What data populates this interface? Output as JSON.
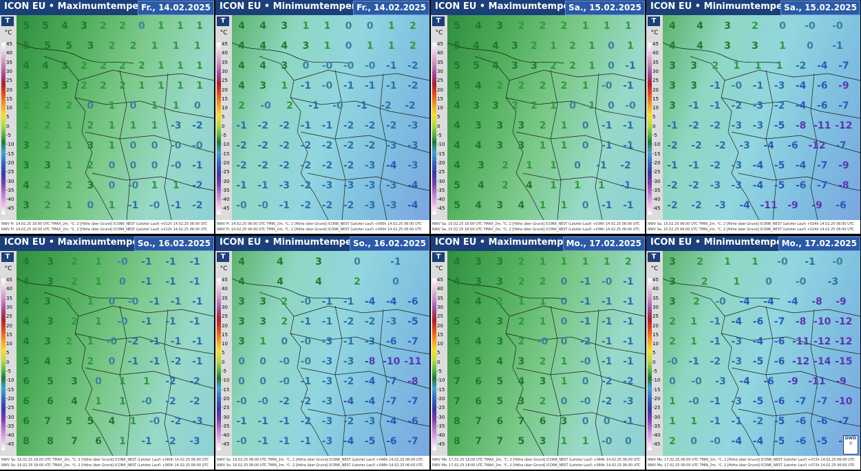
{
  "legend": {
    "t_label": "T",
    "unit": "°C",
    "ticks": [
      "45",
      "40",
      "35",
      "30",
      "25",
      "20",
      "15",
      "10",
      "5",
      "0",
      "-5",
      "-10",
      "-15",
      "-20",
      "-25",
      "-30",
      "-35",
      "-40",
      "-45"
    ]
  },
  "panels": [
    {
      "title": "ICON EU • Maximumtemperatur",
      "date": "Fr., 14.02.2025",
      "base": "#5bbf6b",
      "foot": [
        "NWV  Fr. 14.02.25 18:00 UTC    TMAX_2m, °C, 2 [Höhe über Grund]  ICON6_NEST (Letzter Lauf) +012h    14.02.25 06:00 UTC",
        "NWV  Fr. 14.02.25 18:00 UTC    TMAX_2m, °C, 2 [Höhe über Grund]  ICON6_NEST (Letzter Lauf) +012h    14.02.25 06:00 UTC"
      ],
      "rows": [
        [
          "5",
          "5",
          "4",
          "3",
          "2",
          "2",
          "0",
          "1",
          "1",
          "1"
        ],
        [
          "5",
          "5",
          "5",
          "3",
          "2",
          "2",
          "1",
          "1",
          "1"
        ],
        [
          "4",
          "4",
          "3",
          "2",
          "2",
          "2",
          "2",
          "1",
          "1",
          "1"
        ],
        [
          "3",
          "3",
          "3",
          "2",
          "2",
          "2",
          "1",
          "1",
          "1",
          "1"
        ],
        [
          "2",
          "2",
          "2",
          "0",
          "1",
          "0",
          "1",
          "1",
          "0"
        ],
        [
          "2",
          "2",
          "1",
          "2",
          "1",
          "1",
          "1",
          "-3",
          "-2"
        ],
        [
          "3",
          "2",
          "1",
          "3",
          "1",
          "0",
          "0",
          "-0",
          "-0"
        ],
        [
          "3",
          "3",
          "1",
          "2",
          "0",
          "0",
          "0",
          "-0",
          "-1"
        ],
        [
          "4",
          "2",
          "2",
          "3",
          "0",
          "-0",
          "1",
          "1",
          "-2"
        ],
        [
          "3",
          "2",
          "1",
          "0",
          "1",
          "-1",
          "-0",
          "-1",
          "-2"
        ]
      ]
    },
    {
      "title": "ICON EU • Minimumtemperatur",
      "date": "Fr., 14.02.2025",
      "base": "#8fd7d4",
      "foot": [
        "NWV  Fr. 14.02.25 06:00 UTC    TMIN_2m, °C, 2 [Höhe über Grund]  ICON6_NEST (Letzter Lauf) +000h    14.02.25 06:00 UTC",
        "NWV  Fr. 14.02.25 06:00 UTC    TMIN_2m, °C, 2 [Höhe über Grund]  ICON6_NEST (Letzter Lauf) +000h    14.02.25 06:00 UTC"
      ],
      "rows": [
        [
          "4",
          "4",
          "3",
          "1",
          "1",
          "0",
          "0",
          "1",
          "2"
        ],
        [
          "4",
          "4",
          "4",
          "3",
          "1",
          "0",
          "1",
          "1",
          "2"
        ],
        [
          "4",
          "4",
          "3",
          "0",
          "-0",
          "-0",
          "-0",
          "-1",
          "-2"
        ],
        [
          "4",
          "3",
          "1",
          "-1",
          "-0",
          "-1",
          "-1",
          "-1",
          "-2"
        ],
        [
          "2",
          "-0",
          "2",
          "-1",
          "-0",
          "-1",
          "-2",
          "-2"
        ],
        [
          "-1",
          "-2",
          "-2",
          "-1",
          "-1",
          "-2",
          "-2",
          "-2",
          "-3"
        ],
        [
          "-2",
          "-2",
          "-2",
          "-2",
          "-2",
          "-2",
          "-2",
          "-3",
          "-3"
        ],
        [
          "-2",
          "-2",
          "-2",
          "-2",
          "-2",
          "-2",
          "-3",
          "-4",
          "-3"
        ],
        [
          "-1",
          "-1",
          "-3",
          "-2",
          "-3",
          "-3",
          "-3",
          "-3",
          "-4"
        ],
        [
          "-0",
          "-0",
          "-1",
          "-2",
          "-2",
          "-2",
          "-3",
          "-3",
          "-4"
        ]
      ]
    },
    {
      "title": "ICON EU • Maximumtemperatur",
      "date": "Sa., 15.02.2025",
      "base": "#5bbf6b",
      "foot": [
        "NWV  Sa. 15.02.25 18:00 UTC    TMAX_2m, °C, 2 [Höhe über Grund]  ICON6_NEST (Letzter Lauf) +036h    14.02.25 06:00 UTC",
        "NWV  Sa. 15.02.25 18:00 UTC    TMAX_2m, °C, 2 [Höhe über Grund]  ICON6_NEST (Letzter Lauf) +036h    14.02.25 06:00 UTC"
      ],
      "rows": [
        [
          "5",
          "4",
          "3",
          "2",
          "2",
          "2",
          "1",
          "1",
          "1"
        ],
        [
          "5",
          "4",
          "4",
          "3",
          "2",
          "1",
          "2",
          "1",
          "0",
          "1"
        ],
        [
          "5",
          "5",
          "4",
          "3",
          "3",
          "2",
          "2",
          "1",
          "0",
          "-1"
        ],
        [
          "5",
          "4",
          "2",
          "2",
          "2",
          "2",
          "1",
          "-0",
          "-1"
        ],
        [
          "4",
          "3",
          "3",
          "2",
          "2",
          "1",
          "0",
          "1",
          "0",
          "-0"
        ],
        [
          "4",
          "3",
          "3",
          "3",
          "2",
          "1",
          "0",
          "-1",
          "-1"
        ],
        [
          "4",
          "4",
          "3",
          "3",
          "1",
          "1",
          "0",
          "-1",
          "-1"
        ],
        [
          "4",
          "3",
          "2",
          "1",
          "1",
          "0",
          "-1",
          "-2"
        ],
        [
          "5",
          "4",
          "2",
          "4",
          "1",
          "1",
          "1",
          "-1"
        ],
        [
          "5",
          "4",
          "3",
          "4",
          "1",
          "1",
          "0",
          "-1",
          "-1"
        ]
      ]
    },
    {
      "title": "ICON EU • Minimumtemperatur",
      "date": "Sa., 15.02.2025",
      "base": "#8fd7d4",
      "foot": [
        "NWV  Sa. 15.02.25 06:00 UTC    TMIN_2m, °C, 2 [Höhe über Grund]  ICON6_NEST (Letzter Lauf) +024h    14.02.25 06:00 UTC",
        "NWV  Sa. 15.02.25 06:00 UTC    TMIN_2m, °C, 2 [Höhe über Grund]  ICON6_NEST (Letzter Lauf) +024h    14.02.25 06:00 UTC"
      ],
      "rows": [
        [
          "4",
          "4",
          "3",
          "2",
          "0",
          "-0",
          "-0"
        ],
        [
          "4",
          "4",
          "3",
          "3",
          "1",
          "0",
          "-1"
        ],
        [
          "3",
          "3",
          "2",
          "1",
          "1",
          "1",
          "-2",
          "-4",
          "-7"
        ],
        [
          "3",
          "3",
          "-1",
          "-0",
          "-1",
          "-3",
          "-4",
          "-6",
          "-9"
        ],
        [
          "3",
          "-1",
          "-1",
          "-2",
          "-3",
          "-2",
          "-4",
          "-6",
          "-7"
        ],
        [
          "-1",
          "-2",
          "-2",
          "-3",
          "-3",
          "-5",
          "-8",
          "-11",
          "-12"
        ],
        [
          "-2",
          "-2",
          "-2",
          "-3",
          "-4",
          "-6",
          "-12",
          "-7"
        ],
        [
          "-1",
          "-1",
          "-2",
          "-3",
          "-4",
          "-5",
          "-4",
          "-7",
          "-9"
        ],
        [
          "-2",
          "-2",
          "-3",
          "-3",
          "-4",
          "-5",
          "-6",
          "-7",
          "-8"
        ],
        [
          "-2",
          "-2",
          "-3",
          "-4",
          "-11",
          "-9",
          "-9",
          "-6"
        ]
      ]
    },
    {
      "title": "ICON EU • Maximumtemperatur",
      "date": "So., 16.02.2025",
      "base": "#5bbf6b",
      "foot": [
        "NWV  So. 16.02.25 18:00 UTC    TMAX_2m, °C, 2 [Höhe über Grund]  ICON6_NEST (Letzter Lauf) +060h    14.02.25 06:00 UTC",
        "NWV  So. 16.02.25 18:00 UTC    TMAX_2m, °C, 2 [Höhe über Grund]  ICON6_NEST (Letzter Lauf) +060h    14.02.25 06:00 UTC"
      ],
      "rows": [
        [
          "4",
          "3",
          "2",
          "1",
          "-0",
          "-1",
          "-1",
          "-1"
        ],
        [
          "4",
          "3",
          "2",
          "1",
          "0",
          "-1",
          "-1",
          "-1"
        ],
        [
          "4",
          "3",
          "1",
          "1",
          "0",
          "-0",
          "-1",
          "-1",
          "-1"
        ],
        [
          "4",
          "3",
          "2",
          "1",
          "-0",
          "-1",
          "-1",
          "-1"
        ],
        [
          "4",
          "3",
          "2",
          "1",
          "-0",
          "-2",
          "-1",
          "-1",
          "-1"
        ],
        [
          "5",
          "4",
          "3",
          "2",
          "0",
          "-1",
          "-1",
          "-2",
          "-1"
        ],
        [
          "6",
          "5",
          "3",
          "0",
          "1",
          "1",
          "-2",
          "-2"
        ],
        [
          "6",
          "6",
          "4",
          "1",
          "1",
          "-0",
          "-2",
          "-2"
        ],
        [
          "6",
          "7",
          "5",
          "5",
          "4",
          "1",
          "-0",
          "-2",
          "-3"
        ],
        [
          "8",
          "8",
          "7",
          "6",
          "1",
          "-1",
          "-2",
          "-3"
        ]
      ]
    },
    {
      "title": "ICON EU • Minimumtemperatur",
      "date": "So., 16.02.2025",
      "base": "#8fd7d4",
      "foot": [
        "NWV  So. 16.02.25 06:00 UTC    TMIN_2m, °C, 2 [Höhe über Grund]  ICON6_NEST (Letzter Lauf) +048h    14.02.25 06:00 UTC",
        "NWV  So. 16.02.25 06:00 UTC    TMIN_2m, °C, 2 [Höhe über Grund]  ICON6_NEST (Letzter Lauf) +048h    14.02.25 06:00 UTC"
      ],
      "rows": [
        [
          "4",
          "4",
          "3",
          "0",
          "-1"
        ],
        [
          "4",
          "4",
          "4",
          "2",
          "0"
        ],
        [
          "3",
          "3",
          "2",
          "-0",
          "-1",
          "-1",
          "-4",
          "-4",
          "-6"
        ],
        [
          "3",
          "3",
          "2",
          "-1",
          "-1",
          "-2",
          "-2",
          "-3",
          "-5"
        ],
        [
          "3",
          "1",
          "0",
          "-0",
          "-3",
          "-1",
          "-3",
          "-6",
          "-7"
        ],
        [
          "0",
          "0",
          "-0",
          "-0",
          "-3",
          "-3",
          "-8",
          "-10",
          "-11"
        ],
        [
          "0",
          "0",
          "-0",
          "-1",
          "-3",
          "-2",
          "-4",
          "-7",
          "-8"
        ],
        [
          "-0",
          "-0",
          "-2",
          "-2",
          "-3",
          "-4",
          "-4",
          "-7",
          "-7"
        ],
        [
          "-1",
          "-1",
          "-1",
          "-2",
          "-3",
          "-2",
          "-3",
          "-4",
          "-6"
        ],
        [
          "-0",
          "-1",
          "-1",
          "-1",
          "-3",
          "-4",
          "-5",
          "-6",
          "-7"
        ]
      ]
    },
    {
      "title": "ICON EU • Maximumtemperatur",
      "date": "Mo., 17.02.2025",
      "base": "#5bbf6b",
      "foot": [
        "NWV  Mo. 17.02.25 18:00 UTC    TMAX_2m, °C, 2 [Höhe über Grund]  ICON6_NEST (Letzter Lauf) +084h    14.02.25 06:00 UTC",
        "NWV  Mo. 17.02.25 18:00 UTC    TMAX_2m, °C, 2 [Höhe über Grund]  ICON6_NEST (Letzter Lauf) +084h    14.02.25 06:00 UTC"
      ],
      "rows": [
        [
          "4",
          "3",
          "3",
          "2",
          "1",
          "1",
          "1",
          "1",
          "2"
        ],
        [
          "4",
          "3",
          "3",
          "2",
          "2",
          "0",
          "-1",
          "-0",
          "-1"
        ],
        [
          "4",
          "4",
          "2",
          "1",
          "1",
          "0",
          "-1",
          "-1",
          "-1"
        ],
        [
          "5",
          "4",
          "3",
          "2",
          "1",
          "0",
          "-1",
          "-1",
          "-1"
        ],
        [
          "5",
          "4",
          "3",
          "2",
          "-0",
          "0",
          "-2",
          "-1",
          "-1"
        ],
        [
          "6",
          "5",
          "4",
          "3",
          "2",
          "1",
          "-0",
          "-1",
          "-1"
        ],
        [
          "7",
          "6",
          "5",
          "4",
          "3",
          "1",
          "0",
          "-2",
          "-2"
        ],
        [
          "7",
          "6",
          "5",
          "3",
          "2",
          "0",
          "-0",
          "-2",
          "-3"
        ],
        [
          "8",
          "7",
          "6",
          "7",
          "6",
          "3",
          "0",
          "0",
          "-1"
        ],
        [
          "8",
          "7",
          "7",
          "5",
          "3",
          "1",
          "1",
          "-0",
          "0"
        ]
      ]
    },
    {
      "title": "ICON EU • Minimumtemperatur",
      "date": "Mo., 17.02.2025",
      "base": "#8fd7d4",
      "foot": [
        "NWV  Mo. 17.02.25 06:00 UTC    TMIN_2m, °C, 2 [Höhe über Grund]  ICON6_NEST (Letzter Lauf) +072h    14.02.25 06:00 UTC",
        "NWV  Mo. 17.02.25 06:00 UTC    TMIN_2m, °C, 2 [Höhe über Grund]  ICON6_NEST (Letzter Lauf) +072h    14.02.25 06:00 UTC"
      ],
      "rows": [
        [
          "3",
          "2",
          "1",
          "1",
          "-0",
          "-1",
          "-0"
        ],
        [
          "3",
          "2",
          "1",
          "0",
          "-0",
          "-3"
        ],
        [
          "3",
          "2",
          "-0",
          "-4",
          "-4",
          "-4",
          "-8",
          "-9"
        ],
        [
          "2",
          "1",
          "-1",
          "-4",
          "-6",
          "-7",
          "-8",
          "-10",
          "-12"
        ],
        [
          "2",
          "1",
          "-1",
          "-3",
          "-4",
          "-6",
          "-11",
          "-12",
          "-12"
        ],
        [
          "-0",
          "-1",
          "-2",
          "-3",
          "-5",
          "-6",
          "-12",
          "-14",
          "-15"
        ],
        [
          "0",
          "-0",
          "-3",
          "-4",
          "-6",
          "-9",
          "-11",
          "-9"
        ],
        [
          "1",
          "-0",
          "-1",
          "-3",
          "-5",
          "-6",
          "-7",
          "-7",
          "-10"
        ],
        [
          "1",
          "1",
          "-1",
          "-1",
          "-2",
          "-5",
          "-6",
          "-6",
          "-7"
        ],
        [
          "2",
          "0",
          "-0",
          "-4",
          "-4",
          "-5",
          "-6",
          "-5",
          "-6"
        ]
      ]
    }
  ],
  "logo": {
    "text": "DWD"
  }
}
